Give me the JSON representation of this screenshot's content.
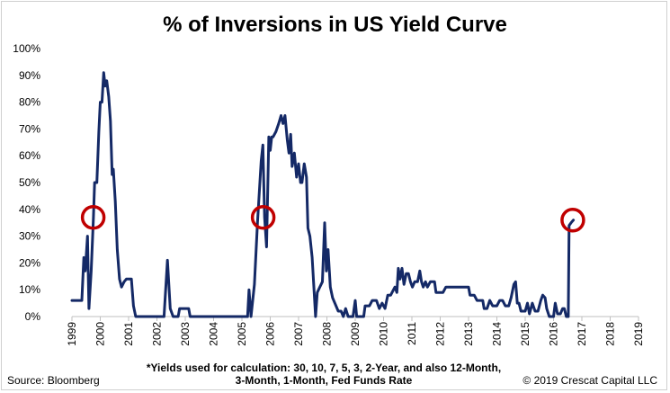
{
  "chart_data": {
    "type": "line",
    "title": "% of Inversions in US Yield Curve",
    "xlabel": "",
    "ylabel": "",
    "xlim": [
      1999.0,
      2019.0
    ],
    "ylim": [
      0,
      100
    ],
    "y_tick_labels": [
      "0%",
      "10%",
      "20%",
      "30%",
      "40%",
      "50%",
      "60%",
      "70%",
      "80%",
      "90%",
      "100%"
    ],
    "x_tick_labels": [
      "1999",
      "2000",
      "2001",
      "2002",
      "2003",
      "2004",
      "2005",
      "2006",
      "2007",
      "2008",
      "2009",
      "2010",
      "2011",
      "2012",
      "2013",
      "2014",
      "2015",
      "2016",
      "2017",
      "2018",
      "2019"
    ],
    "grid": false,
    "line_color": "#142966",
    "marker_color": "#c00000",
    "series": [
      {
        "name": "",
        "points": [
          [
            1999.0,
            6
          ],
          [
            1999.35,
            6
          ],
          [
            1999.42,
            22
          ],
          [
            1999.47,
            17
          ],
          [
            1999.55,
            30
          ],
          [
            1999.6,
            3
          ],
          [
            1999.68,
            17
          ],
          [
            1999.76,
            37
          ],
          [
            1999.8,
            50
          ],
          [
            1999.88,
            50
          ],
          [
            1999.95,
            69
          ],
          [
            2000.0,
            80
          ],
          [
            2000.06,
            80
          ],
          [
            2000.12,
            91
          ],
          [
            2000.17,
            86
          ],
          [
            2000.23,
            88
          ],
          [
            2000.3,
            82
          ],
          [
            2000.36,
            73
          ],
          [
            2000.42,
            53
          ],
          [
            2000.46,
            55
          ],
          [
            2000.53,
            43
          ],
          [
            2000.6,
            25
          ],
          [
            2000.68,
            14
          ],
          [
            2000.75,
            11
          ],
          [
            2000.84,
            13
          ],
          [
            2000.92,
            14
          ],
          [
            2001.1,
            14
          ],
          [
            2001.17,
            4
          ],
          [
            2001.25,
            0
          ],
          [
            2002.25,
            0
          ],
          [
            2002.37,
            21
          ],
          [
            2002.47,
            3
          ],
          [
            2002.57,
            0
          ],
          [
            2002.75,
            0
          ],
          [
            2002.8,
            3
          ],
          [
            2003.12,
            3
          ],
          [
            2003.17,
            0
          ],
          [
            2005.2,
            0
          ],
          [
            2005.25,
            10
          ],
          [
            2005.32,
            0
          ],
          [
            2005.44,
            12
          ],
          [
            2005.55,
            35
          ],
          [
            2005.68,
            58
          ],
          [
            2005.74,
            64
          ],
          [
            2005.8,
            37
          ],
          [
            2005.87,
            26
          ],
          [
            2005.95,
            67
          ],
          [
            2006.0,
            62
          ],
          [
            2006.05,
            67
          ],
          [
            2006.1,
            67
          ],
          [
            2006.2,
            69
          ],
          [
            2006.3,
            72
          ],
          [
            2006.38,
            75
          ],
          [
            2006.45,
            72
          ],
          [
            2006.52,
            75
          ],
          [
            2006.6,
            66
          ],
          [
            2006.66,
            61
          ],
          [
            2006.72,
            68
          ],
          [
            2006.77,
            56
          ],
          [
            2006.85,
            61
          ],
          [
            2006.93,
            52
          ],
          [
            2007.0,
            57
          ],
          [
            2007.07,
            50
          ],
          [
            2007.12,
            50
          ],
          [
            2007.2,
            57
          ],
          [
            2007.28,
            52
          ],
          [
            2007.33,
            33
          ],
          [
            2007.4,
            30
          ],
          [
            2007.48,
            22
          ],
          [
            2007.6,
            0
          ],
          [
            2007.66,
            9
          ],
          [
            2007.75,
            11
          ],
          [
            2007.84,
            13
          ],
          [
            2007.92,
            35
          ],
          [
            2007.98,
            17
          ],
          [
            2008.04,
            25
          ],
          [
            2008.12,
            11
          ],
          [
            2008.2,
            7
          ],
          [
            2008.32,
            4
          ],
          [
            2008.4,
            2
          ],
          [
            2008.5,
            2
          ],
          [
            2008.58,
            0
          ],
          [
            2008.66,
            3
          ],
          [
            2008.75,
            0
          ],
          [
            2008.92,
            0
          ],
          [
            2009.0,
            6
          ],
          [
            2009.05,
            0
          ],
          [
            2009.3,
            0
          ],
          [
            2009.35,
            4
          ],
          [
            2009.5,
            4
          ],
          [
            2009.6,
            6
          ],
          [
            2009.75,
            6
          ],
          [
            2009.85,
            3
          ],
          [
            2009.95,
            5
          ],
          [
            2010.05,
            3
          ],
          [
            2010.15,
            8
          ],
          [
            2010.25,
            8
          ],
          [
            2010.4,
            11
          ],
          [
            2010.47,
            9
          ],
          [
            2010.52,
            18
          ],
          [
            2010.58,
            14
          ],
          [
            2010.65,
            18
          ],
          [
            2010.72,
            12
          ],
          [
            2010.8,
            16
          ],
          [
            2010.88,
            16
          ],
          [
            2010.95,
            13
          ],
          [
            2011.02,
            11
          ],
          [
            2011.1,
            13
          ],
          [
            2011.2,
            13
          ],
          [
            2011.28,
            17
          ],
          [
            2011.34,
            13
          ],
          [
            2011.4,
            11
          ],
          [
            2011.48,
            13
          ],
          [
            2011.55,
            11
          ],
          [
            2011.65,
            13
          ],
          [
            2011.8,
            13
          ],
          [
            2011.85,
            9
          ],
          [
            2012.1,
            9
          ],
          [
            2012.2,
            11
          ],
          [
            2013.0,
            11
          ],
          [
            2013.05,
            8
          ],
          [
            2013.2,
            8
          ],
          [
            2013.3,
            6
          ],
          [
            2013.5,
            6
          ],
          [
            2013.55,
            3
          ],
          [
            2013.65,
            3
          ],
          [
            2013.75,
            6
          ],
          [
            2013.85,
            4
          ],
          [
            2014.0,
            4
          ],
          [
            2014.1,
            6
          ],
          [
            2014.2,
            6
          ],
          [
            2014.3,
            4
          ],
          [
            2014.42,
            4
          ],
          [
            2014.5,
            7
          ],
          [
            2014.6,
            12
          ],
          [
            2014.66,
            13
          ],
          [
            2014.72,
            5
          ],
          [
            2014.78,
            5
          ],
          [
            2014.85,
            2
          ],
          [
            2015.0,
            2
          ],
          [
            2015.08,
            5
          ],
          [
            2015.15,
            1
          ],
          [
            2015.25,
            5
          ],
          [
            2015.35,
            2
          ],
          [
            2015.45,
            2
          ],
          [
            2015.55,
            6
          ],
          [
            2015.62,
            8
          ],
          [
            2015.7,
            7
          ],
          [
            2015.76,
            3
          ],
          [
            2015.85,
            0
          ],
          [
            2016.0,
            0
          ],
          [
            2016.06,
            5
          ],
          [
            2016.14,
            1
          ],
          [
            2016.24,
            1
          ],
          [
            2016.32,
            3
          ],
          [
            2016.38,
            3
          ],
          [
            2016.45,
            0
          ],
          [
            2016.52,
            0
          ],
          [
            2016.55,
            34
          ],
          [
            2016.62,
            35
          ],
          [
            2016.7,
            36
          ]
        ]
      }
    ],
    "annotations": [
      {
        "shape": "circle",
        "x": 1999.75,
        "y": 37
      },
      {
        "shape": "circle",
        "x": 2005.75,
        "y": 37
      },
      {
        "shape": "circle",
        "x": 2016.68,
        "y": 36
      }
    ]
  },
  "notes": {
    "source": "Source: Bloomberg",
    "footnote_line1": "*Yields used for calculation: 30, 10, 7, 5, 3, 2-Year, and also 12-Month,",
    "footnote_line2": "3-Month, 1-Month, Fed Funds Rate",
    "copyright": "© 2019 Crescat Capital LLC"
  }
}
